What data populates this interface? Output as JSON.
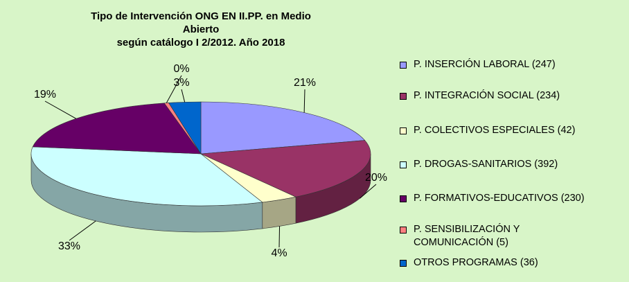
{
  "chart_data": {
    "type": "pie3d",
    "title": "Tipo de Intervención ONG EN II.PP. en Medio Abierto\nsegún catálogo I 2/2012. Año 2018",
    "categories": [
      "P. INSERCIÓN LABORAL (247)",
      "P. INTEGRACIÓN SOCIAL (234)",
      "P. COLECTIVOS ESPECIALES (42)",
      "P. DROGAS-SANITARIOS (392)",
      "P. FORMATIVOS-EDUCATIVOS (230)",
      "P. SENSIBILIZACIÓN Y\nCOMUNICACIÓN (5)",
      "OTROS PROGRAMAS (36)"
    ],
    "values": [
      20.83,
      19.73,
      3.54,
      33.05,
      19.39,
      0.42,
      3.04
    ],
    "value_labels": [
      "21%",
      "20%",
      "4%",
      "33%",
      "19%",
      "0%",
      "3%"
    ],
    "colors": [
      "#9999ff",
      "#993366",
      "#ffffcc",
      "#ccffff",
      "#660066",
      "#ff8080",
      "#0066cc"
    ],
    "legend": "right"
  }
}
